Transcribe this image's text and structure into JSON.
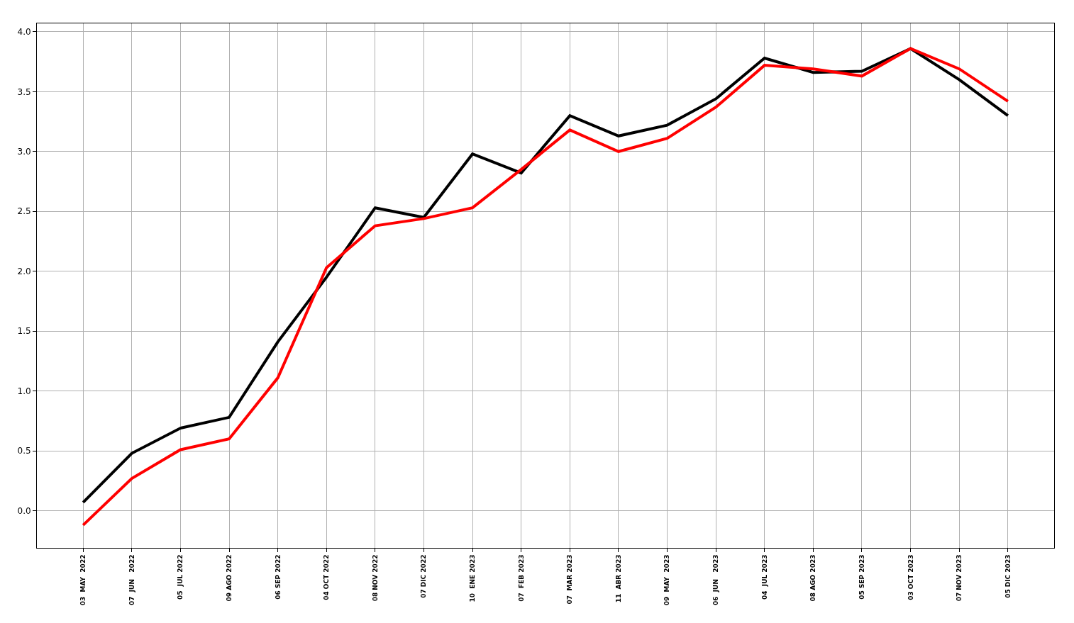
{
  "chart_data": {
    "type": "line",
    "categories": [
      "03  MAY  2022",
      "07  JUN   2022",
      "05  JUL 2022",
      "09 AGO 2022",
      "06 SEP 2022",
      "04 OCT 2022",
      "08 NOV 2022",
      "07 DIC 2022",
      "10  ENE 2023",
      "07  FEB 2023",
      "07  MAR 2023",
      "11  ABR 2023",
      "09  MAY  2023",
      "06  JUN   2023",
      "04  JUL 2023",
      "08 AGO 2023",
      "05 SEP 2023",
      "03 OCT 2023",
      "07 NOV 2023",
      "05 DIC 2023"
    ],
    "series": [
      {
        "color": "#000000",
        "values": [
          0.07,
          0.48,
          0.69,
          0.78,
          1.41,
          1.95,
          2.53,
          2.45,
          2.98,
          2.82,
          3.3,
          3.13,
          3.22,
          3.44,
          3.78,
          3.66,
          3.67,
          3.86,
          3.6,
          3.3
        ]
      },
      {
        "color": "#ff0000",
        "values": [
          -0.12,
          0.27,
          0.51,
          0.6,
          1.11,
          2.03,
          2.38,
          2.44,
          2.53,
          2.85,
          3.18,
          3.0,
          3.11,
          3.37,
          3.72,
          3.69,
          3.63,
          3.86,
          3.69,
          3.42
        ]
      }
    ],
    "ylim": [
      -0.31,
      4.07
    ],
    "yticks": [
      {
        "value": 0,
        "label": "0.0"
      },
      {
        "value": 0.5,
        "label": "0.5"
      },
      {
        "value": 1,
        "label": "1.0"
      },
      {
        "value": 1.5,
        "label": "1.5"
      },
      {
        "value": 2,
        "label": "2.0"
      },
      {
        "value": 2.5,
        "label": "2.5"
      },
      {
        "value": 3,
        "label": "3.0"
      },
      {
        "value": 3.5,
        "label": "3.5"
      },
      {
        "value": 4,
        "label": "4.0"
      }
    ],
    "grid": true,
    "legend": false,
    "marker": "none",
    "line_style": "solid"
  }
}
